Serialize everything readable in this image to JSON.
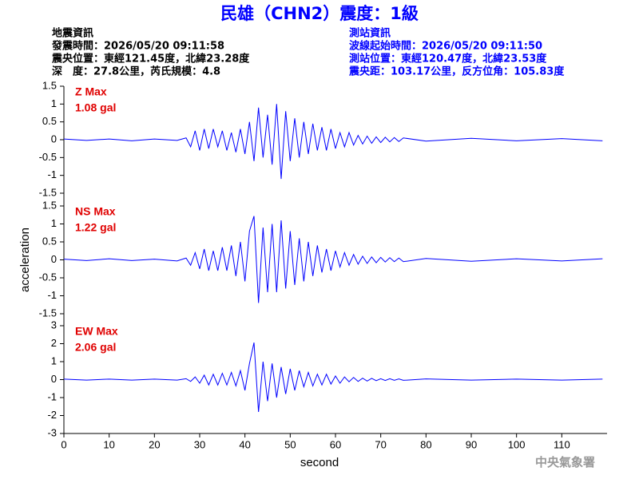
{
  "header": {
    "title": "民雄（CHN2）震度：1級",
    "left": [
      "地震資訊",
      "發震時間：2026/05/20 09:11:58",
      "震央位置：東經121.45度，北緯23.28度",
      "深　度：27.8公里，芮氏規模：4.8"
    ],
    "right": [
      "測站資訊",
      "波線起始時間：2026/05/20 09:11:50",
      "測站位置：東經120.47度，北緯23.53度",
      "震央距：103.17公里，反方位角：105.83度"
    ],
    "footer": "中央氣象署"
  },
  "chart_data": [
    {
      "type": "line",
      "annotation": [
        "Z Max",
        "1.08 gal"
      ],
      "annotation_color": "#e00000",
      "xlim": [
        0,
        120
      ],
      "ylim": [
        -1.5,
        1.5
      ],
      "yticks": [
        1.5,
        1,
        0.5,
        0,
        -0.5,
        -1,
        -1.5
      ],
      "x": [
        0,
        5,
        10,
        15,
        20,
        25,
        27,
        28,
        29,
        30,
        31,
        32,
        33,
        34,
        35,
        36,
        37,
        38,
        39,
        40,
        41,
        42,
        43,
        44,
        45,
        46,
        47,
        48,
        49,
        50,
        51,
        52,
        53,
        54,
        55,
        56,
        57,
        58,
        59,
        60,
        61,
        62,
        63,
        64,
        65,
        66,
        67,
        68,
        69,
        70,
        71,
        72,
        73,
        74,
        75,
        80,
        90,
        100,
        110,
        119
      ],
      "series": [
        {
          "color": "#0000ff",
          "values": [
            0.02,
            -0.02,
            0.02,
            -0.03,
            0.02,
            -0.02,
            0.05,
            -0.2,
            0.25,
            -0.3,
            0.3,
            -0.25,
            0.3,
            -0.2,
            0.25,
            -0.3,
            0.2,
            -0.35,
            0.3,
            -0.4,
            0.5,
            -0.6,
            0.9,
            -0.5,
            0.7,
            -0.7,
            1.0,
            -1.1,
            0.8,
            -0.6,
            0.6,
            -0.5,
            0.5,
            -0.4,
            0.45,
            -0.3,
            0.35,
            -0.3,
            0.3,
            -0.25,
            0.2,
            -0.2,
            0.2,
            -0.15,
            0.12,
            -0.12,
            0.1,
            -0.1,
            0.08,
            -0.08,
            0.07,
            -0.06,
            0.06,
            -0.05,
            0.05,
            -0.04,
            0.04,
            -0.03,
            0.03,
            -0.03
          ]
        }
      ]
    },
    {
      "type": "line",
      "annotation": [
        "NS Max",
        "1.22 gal"
      ],
      "annotation_color": "#e00000",
      "ylabel": "acceleration",
      "xlim": [
        0,
        120
      ],
      "ylim": [
        -1.5,
        1.5
      ],
      "yticks": [
        1.5,
        1,
        0.5,
        0,
        -0.5,
        -1,
        -1.5
      ],
      "x": [
        0,
        5,
        10,
        15,
        20,
        25,
        27,
        28,
        29,
        30,
        31,
        32,
        33,
        34,
        35,
        36,
        37,
        38,
        39,
        40,
        41,
        42,
        43,
        44,
        45,
        46,
        47,
        48,
        49,
        50,
        51,
        52,
        53,
        54,
        55,
        56,
        57,
        58,
        59,
        60,
        61,
        62,
        63,
        64,
        65,
        66,
        67,
        68,
        69,
        70,
        71,
        72,
        73,
        74,
        75,
        80,
        90,
        100,
        110,
        119
      ],
      "series": [
        {
          "color": "#0000ff",
          "values": [
            0.02,
            -0.02,
            0.03,
            -0.02,
            0.02,
            -0.03,
            0.05,
            -0.15,
            0.2,
            -0.25,
            0.3,
            -0.3,
            0.25,
            -0.3,
            0.35,
            -0.3,
            0.4,
            -0.45,
            0.5,
            -0.6,
            0.8,
            1.22,
            -1.2,
            0.9,
            -0.9,
            1.0,
            -0.9,
            1.1,
            -0.8,
            0.8,
            -0.7,
            0.6,
            -0.6,
            0.5,
            -0.45,
            0.4,
            -0.35,
            0.3,
            -0.3,
            0.25,
            -0.2,
            0.2,
            -0.15,
            0.15,
            -0.12,
            0.1,
            -0.1,
            0.08,
            -0.08,
            0.07,
            -0.06,
            0.06,
            -0.05,
            0.05,
            -0.05,
            0.04,
            -0.04,
            0.03,
            -0.03,
            0.03
          ]
        }
      ]
    },
    {
      "type": "line",
      "annotation": [
        "EW Max",
        "2.06 gal"
      ],
      "annotation_color": "#e00000",
      "xlabel": "second",
      "xlim": [
        0,
        120
      ],
      "xticks": [
        0,
        10,
        20,
        30,
        40,
        50,
        60,
        70,
        80,
        90,
        100,
        110
      ],
      "ylim": [
        -3,
        3
      ],
      "yticks": [
        3,
        2,
        1,
        0,
        -1,
        -2,
        -3
      ],
      "x": [
        0,
        5,
        10,
        15,
        20,
        25,
        27,
        28,
        29,
        30,
        31,
        32,
        33,
        34,
        35,
        36,
        37,
        38,
        39,
        40,
        41,
        42,
        43,
        44,
        45,
        46,
        47,
        48,
        49,
        50,
        51,
        52,
        53,
        54,
        55,
        56,
        57,
        58,
        59,
        60,
        61,
        62,
        63,
        64,
        65,
        66,
        67,
        68,
        69,
        70,
        71,
        72,
        73,
        74,
        75,
        80,
        90,
        100,
        110,
        119
      ],
      "series": [
        {
          "color": "#0000ff",
          "values": [
            0.03,
            -0.03,
            0.03,
            -0.03,
            0.03,
            -0.03,
            0.05,
            -0.1,
            0.15,
            -0.2,
            0.25,
            -0.3,
            0.3,
            -0.3,
            0.35,
            -0.3,
            0.4,
            -0.35,
            0.5,
            -0.6,
            0.9,
            2.06,
            -1.8,
            1.0,
            -1.2,
            0.9,
            -1.0,
            0.7,
            -0.8,
            0.6,
            -0.6,
            0.5,
            -0.4,
            0.4,
            -0.35,
            0.3,
            -0.3,
            0.3,
            -0.25,
            0.2,
            -0.2,
            0.15,
            -0.12,
            0.12,
            -0.1,
            0.08,
            -0.08,
            0.07,
            -0.06,
            0.05,
            -0.05,
            0.05,
            -0.04,
            0.04,
            -0.04,
            0.04,
            -0.03,
            0.03,
            -0.03,
            0.03
          ]
        }
      ]
    }
  ]
}
